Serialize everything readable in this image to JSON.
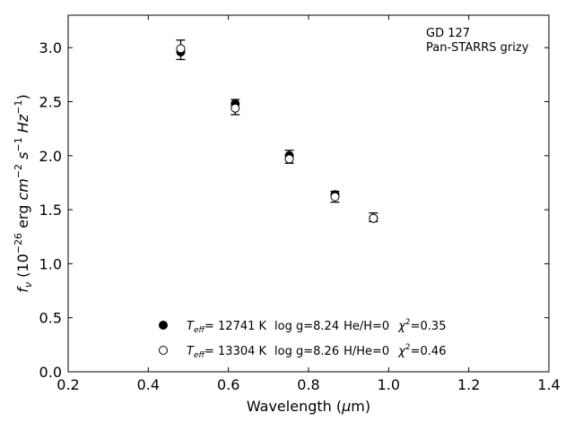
{
  "chart_data": {
    "type": "scatter",
    "title": "",
    "xlabel": "Wavelength (μm)",
    "ylabel": "f_ν (10^-26 erg cm^-2 s^-1 Hz^-1)",
    "xlim": [
      0.2,
      1.4
    ],
    "ylim": [
      0.0,
      3.3
    ],
    "xticks": [
      0.2,
      0.4,
      0.6,
      0.8,
      1.0,
      1.2,
      1.4
    ],
    "yticks": [
      0.0,
      0.5,
      1.0,
      1.5,
      2.0,
      2.5,
      3.0
    ],
    "xtick_labels": [
      "0.2",
      "0.4",
      "0.6",
      "0.8",
      "1.0",
      "1.2",
      "1.4"
    ],
    "ytick_labels": [
      "0.0",
      "0.5",
      "1.0",
      "1.5",
      "2.0",
      "2.5",
      "3.0"
    ],
    "grid": false,
    "annotation": {
      "object": "GD 127",
      "survey": "Pan-STARRS grizy"
    },
    "observed": {
      "x": [
        0.481,
        0.617,
        0.752,
        0.866,
        0.962
      ],
      "y": [
        2.98,
        2.45,
        1.99,
        1.62,
        1.43
      ],
      "yerr": [
        0.09,
        0.07,
        0.06,
        0.05,
        0.04
      ]
    },
    "series": [
      {
        "name": "",
        "marker": "filled-circle",
        "legend_parts": {
          "teff_value": "= 12741 K",
          "logg": "log g=8.24",
          "comp": "He/H=0",
          "chi2": "=0.35"
        },
        "x": [
          0.481,
          0.617,
          0.752,
          0.866,
          0.962
        ],
        "y": [
          2.96,
          2.48,
          2.0,
          1.64,
          1.42
        ]
      },
      {
        "name": "",
        "marker": "open-circle",
        "legend_parts": {
          "teff_value": "= 13304 K",
          "logg": "log g=8.26",
          "comp": "H/He=0",
          "chi2": "=0.46"
        },
        "x": [
          0.481,
          0.617,
          0.752,
          0.866,
          0.962
        ],
        "y": [
          2.99,
          2.44,
          1.97,
          1.62,
          1.42
        ]
      }
    ]
  }
}
